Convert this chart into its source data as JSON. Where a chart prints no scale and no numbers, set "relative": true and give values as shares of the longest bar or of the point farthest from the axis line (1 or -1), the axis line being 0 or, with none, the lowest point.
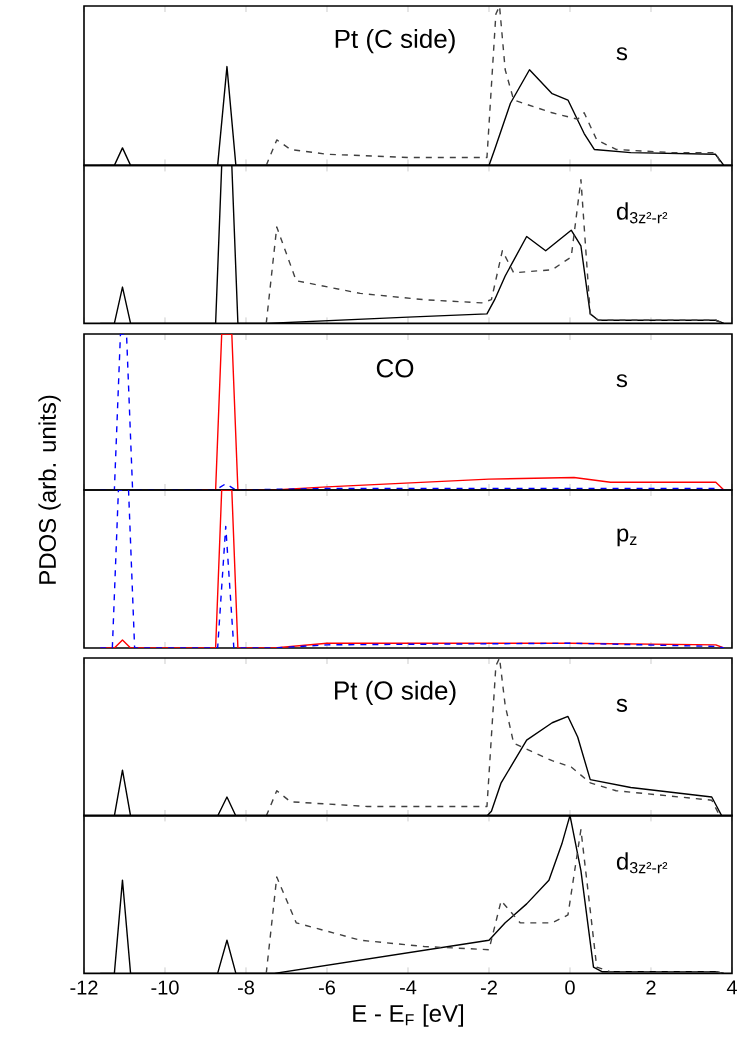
{
  "chart_data": [
    {
      "type": "line",
      "relative": true,
      "title": "Pt (C side)",
      "annotations": [
        "s"
      ],
      "xlim": [
        -12,
        4
      ],
      "xticks": [
        -12,
        -10,
        -8,
        -6,
        -4,
        -2,
        0,
        2,
        4
      ],
      "tick_labels": false,
      "series": [
        {
          "color": "#000000",
          "line_style": "solid",
          "x": [
            -11.6,
            -11.25,
            -11.05,
            -10.85,
            -8.7,
            -8.47,
            -8.25,
            -2.0,
            -1.86,
            -1.47,
            -1.0,
            -0.44,
            -0.05,
            0.35,
            0.6,
            1.5,
            3.59,
            3.8
          ],
          "values": [
            0,
            0,
            0.11,
            0,
            0,
            0.62,
            0,
            0,
            0.1,
            0.39,
            0.6,
            0.45,
            0.41,
            0.2,
            0.1,
            0.08,
            0.07,
            0
          ]
        },
        {
          "color": "#404040",
          "line_style": "dashed",
          "x": [
            -7.5,
            -7.24,
            -6.9,
            -6,
            -4,
            -2.05,
            -1.83,
            -1.74,
            -1.6,
            -1.39,
            -0.44,
            0.19,
            0.35,
            0.66,
            1.14,
            2.5,
            3.6,
            3.74
          ],
          "values": [
            0,
            0.16,
            0.1,
            0.07,
            0.05,
            0.05,
            0.95,
            1,
            0.6,
            0.41,
            0.33,
            0.29,
            0.33,
            0.16,
            0.1,
            0.08,
            0.08,
            0
          ]
        }
      ]
    },
    {
      "type": "line",
      "relative": true,
      "annotations": [
        "d$_{3z²-r²}$"
      ],
      "xlim": [
        -12,
        4
      ],
      "xticks": [
        -12,
        -10,
        -8,
        -6,
        -4,
        -2,
        0,
        2,
        4
      ],
      "tick_labels": false,
      "series": [
        {
          "color": "#000000",
          "line_style": "solid",
          "x": [
            -11.6,
            -11.25,
            -11.05,
            -10.85,
            -8.75,
            -8.6,
            -8.47,
            -8.35,
            -8.2,
            -7.5,
            -4,
            -2.05,
            -1.86,
            -1.6,
            -1.07,
            -0.6,
            0.03,
            0.27,
            0.5,
            0.7,
            3.6,
            3.8
          ],
          "values": [
            0,
            0,
            0.23,
            0,
            0,
            1,
            1,
            1,
            0,
            0,
            0.04,
            0.06,
            0.15,
            0.3,
            0.55,
            0.46,
            0.59,
            0.49,
            0.06,
            0.02,
            0.02,
            0
          ]
        },
        {
          "color": "#404040",
          "line_style": "dashed",
          "x": [
            -7.5,
            -7.24,
            -6.76,
            -5.18,
            -3.6,
            -2.18,
            -1.94,
            -1.67,
            -1.39,
            -0.44,
            0.03,
            0.27,
            0.5,
            0.7,
            3.6,
            3.8
          ],
          "values": [
            0,
            0.61,
            0.27,
            0.19,
            0.15,
            0.13,
            0.15,
            0.46,
            0.32,
            0.34,
            0.42,
            0.91,
            0.06,
            0.02,
            0.02,
            0
          ]
        }
      ]
    },
    {
      "type": "line",
      "relative": true,
      "title": "CO",
      "annotations": [
        "s"
      ],
      "xlim": [
        -12,
        4
      ],
      "xticks": [
        -12,
        -10,
        -8,
        -6,
        -4,
        -2,
        0,
        2,
        4
      ],
      "tick_labels": false,
      "series": [
        {
          "color": "#ff0000",
          "line_style": "solid",
          "x": [
            -9.2,
            -8.75,
            -8.6,
            -8.35,
            -8.2,
            -7.3,
            -6,
            -2,
            0.1,
            1,
            3.6,
            3.8
          ],
          "values": [
            0,
            0,
            1,
            1,
            0,
            0,
            0.02,
            0.07,
            0.08,
            0.05,
            0.05,
            0
          ]
        },
        {
          "color": "#0000ff",
          "line_style": "dashed",
          "x": [
            -11.6,
            -11.25,
            -11.1,
            -10.95,
            -10.8,
            -8.75,
            -8.5,
            -8.25,
            -6,
            0,
            3.6,
            3.8
          ],
          "values": [
            0,
            0,
            1,
            1,
            0,
            0,
            0.04,
            0,
            0.01,
            0.01,
            0.01,
            0
          ]
        }
      ]
    },
    {
      "type": "line",
      "relative": true,
      "ylabel": "PDOS (arb. units)",
      "annotations": [
        "p$_{z}$"
      ],
      "xlim": [
        -12,
        4
      ],
      "xticks": [
        -12,
        -10,
        -8,
        -6,
        -4,
        -2,
        0,
        2,
        4
      ],
      "tick_labels": false,
      "series": [
        {
          "color": "#ff0000",
          "line_style": "solid",
          "x": [
            -11.6,
            -11.25,
            -11.05,
            -10.85,
            -8.75,
            -8.6,
            -8.35,
            -8.2,
            -7.3,
            -6,
            -2,
            0,
            3.6,
            3.8
          ],
          "values": [
            0,
            0,
            0.05,
            0,
            0,
            1,
            1,
            0,
            0,
            0.03,
            0.03,
            0.03,
            0.02,
            0
          ]
        },
        {
          "color": "#0000ff",
          "line_style": "dashed",
          "x": [
            -11.6,
            -11.3,
            -11.15,
            -10.9,
            -10.75,
            -8.7,
            -8.5,
            -8.3,
            -7.3,
            -6,
            0,
            3.6,
            3.8
          ],
          "values": [
            0,
            0,
            1,
            1,
            0,
            0,
            0.77,
            0,
            0,
            0.02,
            0.03,
            0.01,
            0
          ]
        }
      ]
    },
    {
      "type": "line",
      "relative": true,
      "title": "Pt (O side)",
      "annotations": [
        "s"
      ],
      "xlim": [
        -12,
        4
      ],
      "xticks": [
        -12,
        -10,
        -8,
        -6,
        -4,
        -2,
        0,
        2,
        4
      ],
      "tick_labels": false,
      "series": [
        {
          "color": "#000000",
          "line_style": "solid",
          "x": [
            -11.6,
            -11.25,
            -11.05,
            -10.85,
            -8.7,
            -8.47,
            -8.25,
            -2.05,
            -1.94,
            -1.7,
            -1.07,
            -0.44,
            -0.05,
            0.19,
            0.5,
            1.5,
            3.5,
            3.75
          ],
          "values": [
            0,
            0,
            0.29,
            0,
            0,
            0.12,
            0,
            0,
            0.03,
            0.21,
            0.48,
            0.59,
            0.63,
            0.5,
            0.23,
            0.18,
            0.12,
            0
          ]
        },
        {
          "color": "#404040",
          "line_style": "dashed",
          "x": [
            -7.5,
            -7.24,
            -6.9,
            -5,
            -2.05,
            -1.83,
            -1.74,
            -1.6,
            -1.39,
            -0.44,
            0.03,
            0.5,
            1.14,
            3.5,
            3.7
          ],
          "values": [
            0,
            0.16,
            0.09,
            0.06,
            0.06,
            0.95,
            1,
            0.7,
            0.46,
            0.35,
            0.31,
            0.21,
            0.16,
            0.1,
            0
          ]
        }
      ]
    },
    {
      "type": "line",
      "relative": true,
      "xlabel": "E - E$_{F}$ [eV]",
      "annotations": [
        "d$_{3z²-r²}$"
      ],
      "xlim": [
        -12,
        4
      ],
      "xticks": [
        -12,
        -10,
        -8,
        -6,
        -4,
        -2,
        0,
        2,
        4
      ],
      "tick_labels": "x",
      "series": [
        {
          "color": "#000000",
          "line_style": "solid",
          "x": [
            -11.6,
            -11.25,
            -11.05,
            -10.85,
            -8.7,
            -8.47,
            -8.25,
            -7.3,
            -2.0,
            -1.6,
            -1.07,
            -0.52,
            -0.2,
            0,
            0.27,
            0.58,
            0.8,
            3.6,
            3.8
          ],
          "values": [
            0,
            0,
            0.59,
            0,
            0,
            0.21,
            0,
            0,
            0.21,
            0.32,
            0.44,
            0.59,
            0.82,
            1,
            0.65,
            0.04,
            0.01,
            0.01,
            0
          ]
        },
        {
          "color": "#404040",
          "line_style": "dashed",
          "x": [
            -7.5,
            -7.24,
            -6.76,
            -5.18,
            -3.6,
            -2.0,
            -1.7,
            -1.23,
            -0.44,
            -0.05,
            0.27,
            0.5,
            0.66,
            1.0,
            3.6,
            3.8
          ],
          "values": [
            0,
            0.61,
            0.32,
            0.21,
            0.17,
            0.15,
            0.46,
            0.32,
            0.32,
            0.37,
            0.91,
            0.4,
            0.04,
            0.01,
            0.01,
            0
          ]
        }
      ]
    }
  ]
}
